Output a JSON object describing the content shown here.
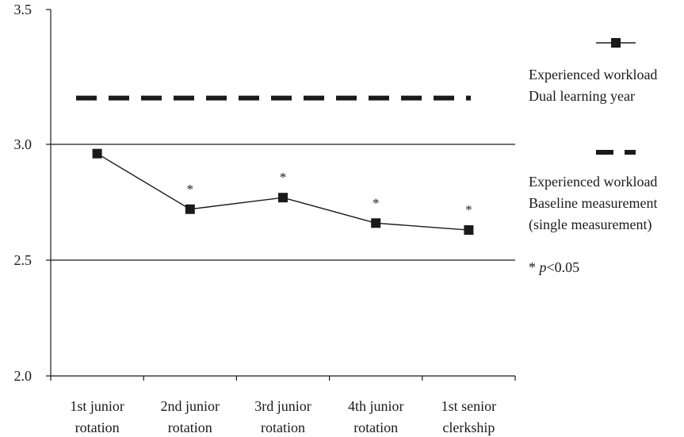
{
  "chart_data": {
    "type": "line",
    "categories": [
      [
        "1st junior",
        "rotation"
      ],
      [
        "2nd junior",
        "rotation"
      ],
      [
        "3rd junior",
        "rotation"
      ],
      [
        "4th junior",
        "rotation"
      ],
      [
        "1st senior",
        "clerkship"
      ]
    ],
    "ylim": [
      2.0,
      3.5
    ],
    "yticks": [
      "2.0",
      "2.5",
      "3.0",
      "3.5"
    ],
    "gridlines": [
      2.5,
      3.0
    ],
    "series": [
      {
        "name": "Experienced workload Dual learning year",
        "style": "line-square-markers",
        "color": "#1a1a1a",
        "values": [
          2.96,
          2.72,
          2.77,
          2.66,
          2.63
        ],
        "significance": [
          "",
          "*",
          "*",
          "*",
          "*"
        ]
      },
      {
        "name": "Experienced workload Baseline measurement (single measurement)",
        "style": "dashed",
        "color": "#1a1a1a",
        "values": [
          3.2,
          3.2,
          3.2,
          3.2,
          3.2
        ]
      }
    ],
    "legend": {
      "entries": [
        [
          "Experienced workload",
          "Dual learning year"
        ],
        [
          "Experienced workload",
          "Baseline measurement",
          "(single measurement)"
        ]
      ],
      "note_star": "* ",
      "note_p": "p",
      "note_rest": "<0.05"
    }
  }
}
